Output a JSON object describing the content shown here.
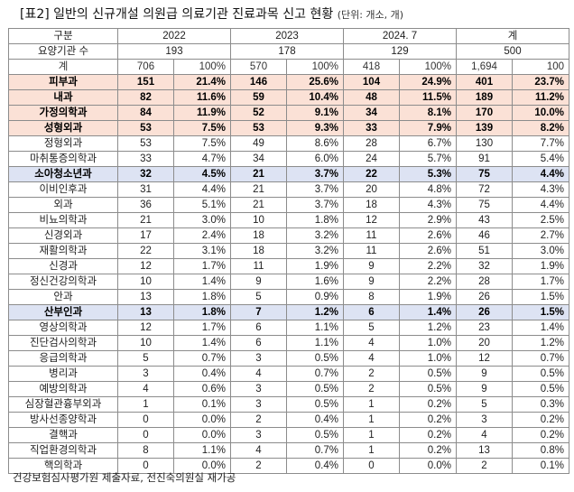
{
  "title": {
    "main": "[표2] 일반의 신규개설 의원급 의료기관 진료과목 신고 현황",
    "unit": "(단위: 개소, 개)"
  },
  "header": {
    "row_label": "구분",
    "years": [
      "2022",
      "2023",
      "2024. 7",
      "계"
    ]
  },
  "institutions": {
    "label": "요양기관 수",
    "values": [
      "193",
      "178",
      "129",
      "500"
    ]
  },
  "rows": [
    {
      "name": "계",
      "v": [
        "706",
        "100%",
        "570",
        "100%",
        "418",
        "100%",
        "1,694",
        "100"
      ],
      "style": "total"
    },
    {
      "name": "피부과",
      "v": [
        "151",
        "21.4%",
        "146",
        "25.6%",
        "104",
        "24.9%",
        "401",
        "23.7%"
      ],
      "style": "pink"
    },
    {
      "name": "내과",
      "v": [
        "82",
        "11.6%",
        "59",
        "10.4%",
        "48",
        "11.5%",
        "189",
        "11.2%"
      ],
      "style": "pink"
    },
    {
      "name": "가정의학과",
      "v": [
        "84",
        "11.9%",
        "52",
        "9.1%",
        "34",
        "8.1%",
        "170",
        "10.0%"
      ],
      "style": "pink"
    },
    {
      "name": "성형외과",
      "v": [
        "53",
        "7.5%",
        "53",
        "9.3%",
        "33",
        "7.9%",
        "139",
        "8.2%"
      ],
      "style": "pink"
    },
    {
      "name": "정형외과",
      "v": [
        "53",
        "7.5%",
        "49",
        "8.6%",
        "28",
        "6.7%",
        "130",
        "7.7%"
      ],
      "style": ""
    },
    {
      "name": "마취통증의학과",
      "v": [
        "33",
        "4.7%",
        "34",
        "6.0%",
        "24",
        "5.7%",
        "91",
        "5.4%"
      ],
      "style": ""
    },
    {
      "name": "소아청소년과",
      "v": [
        "32",
        "4.5%",
        "21",
        "3.7%",
        "22",
        "5.3%",
        "75",
        "4.4%"
      ],
      "style": "blue"
    },
    {
      "name": "이비인후과",
      "v": [
        "31",
        "4.4%",
        "21",
        "3.7%",
        "20",
        "4.8%",
        "72",
        "4.3%"
      ],
      "style": ""
    },
    {
      "name": "외과",
      "v": [
        "36",
        "5.1%",
        "21",
        "3.7%",
        "18",
        "4.3%",
        "75",
        "4.4%"
      ],
      "style": ""
    },
    {
      "name": "비뇨의학과",
      "v": [
        "21",
        "3.0%",
        "10",
        "1.8%",
        "12",
        "2.9%",
        "43",
        "2.5%"
      ],
      "style": ""
    },
    {
      "name": "신경외과",
      "v": [
        "17",
        "2.4%",
        "18",
        "3.2%",
        "11",
        "2.6%",
        "46",
        "2.7%"
      ],
      "style": ""
    },
    {
      "name": "재활의학과",
      "v": [
        "22",
        "3.1%",
        "18",
        "3.2%",
        "11",
        "2.6%",
        "51",
        "3.0%"
      ],
      "style": ""
    },
    {
      "name": "신경과",
      "v": [
        "12",
        "1.7%",
        "11",
        "1.9%",
        "9",
        "2.2%",
        "32",
        "1.9%"
      ],
      "style": ""
    },
    {
      "name": "정신건강의학과",
      "v": [
        "10",
        "1.4%",
        "9",
        "1.6%",
        "9",
        "2.2%",
        "28",
        "1.7%"
      ],
      "style": ""
    },
    {
      "name": "안과",
      "v": [
        "13",
        "1.8%",
        "5",
        "0.9%",
        "8",
        "1.9%",
        "26",
        "1.5%"
      ],
      "style": ""
    },
    {
      "name": "산부인과",
      "v": [
        "13",
        "1.8%",
        "7",
        "1.2%",
        "6",
        "1.4%",
        "26",
        "1.5%"
      ],
      "style": "blue"
    },
    {
      "name": "영상의학과",
      "v": [
        "12",
        "1.7%",
        "6",
        "1.1%",
        "5",
        "1.2%",
        "23",
        "1.4%"
      ],
      "style": ""
    },
    {
      "name": "진단검사의학과",
      "v": [
        "10",
        "1.4%",
        "6",
        "1.1%",
        "4",
        "1.0%",
        "20",
        "1.2%"
      ],
      "style": ""
    },
    {
      "name": "응급의학과",
      "v": [
        "5",
        "0.7%",
        "3",
        "0.5%",
        "4",
        "1.0%",
        "12",
        "0.7%"
      ],
      "style": ""
    },
    {
      "name": "병리과",
      "v": [
        "3",
        "0.4%",
        "4",
        "0.7%",
        "2",
        "0.5%",
        "9",
        "0.5%"
      ],
      "style": ""
    },
    {
      "name": "예방의학과",
      "v": [
        "4",
        "0.6%",
        "3",
        "0.5%",
        "2",
        "0.5%",
        "9",
        "0.5%"
      ],
      "style": ""
    },
    {
      "name": "심장혈관흉부외과",
      "v": [
        "1",
        "0.1%",
        "3",
        "0.5%",
        "1",
        "0.2%",
        "5",
        "0.3%"
      ],
      "style": ""
    },
    {
      "name": "방사선종양학과",
      "v": [
        "0",
        "0.0%",
        "2",
        "0.4%",
        "1",
        "0.2%",
        "3",
        "0.2%"
      ],
      "style": ""
    },
    {
      "name": "결핵과",
      "v": [
        "0",
        "0.0%",
        "3",
        "0.5%",
        "1",
        "0.2%",
        "4",
        "0.2%"
      ],
      "style": ""
    },
    {
      "name": "직업환경의학과",
      "v": [
        "8",
        "1.1%",
        "4",
        "0.7%",
        "1",
        "0.2%",
        "13",
        "0.8%"
      ],
      "style": ""
    },
    {
      "name": "핵의학과",
      "v": [
        "0",
        "0.0%",
        "2",
        "0.4%",
        "0",
        "0.0%",
        "2",
        "0.1%"
      ],
      "style": ""
    }
  ],
  "footer": "건강보험심사평가원 제출자료, 전진숙의원실 재가공",
  "colors": {
    "highlight_pink": "#fbe1d6",
    "highlight_blue": "#dde3f3",
    "border": "#8c8c8c"
  }
}
